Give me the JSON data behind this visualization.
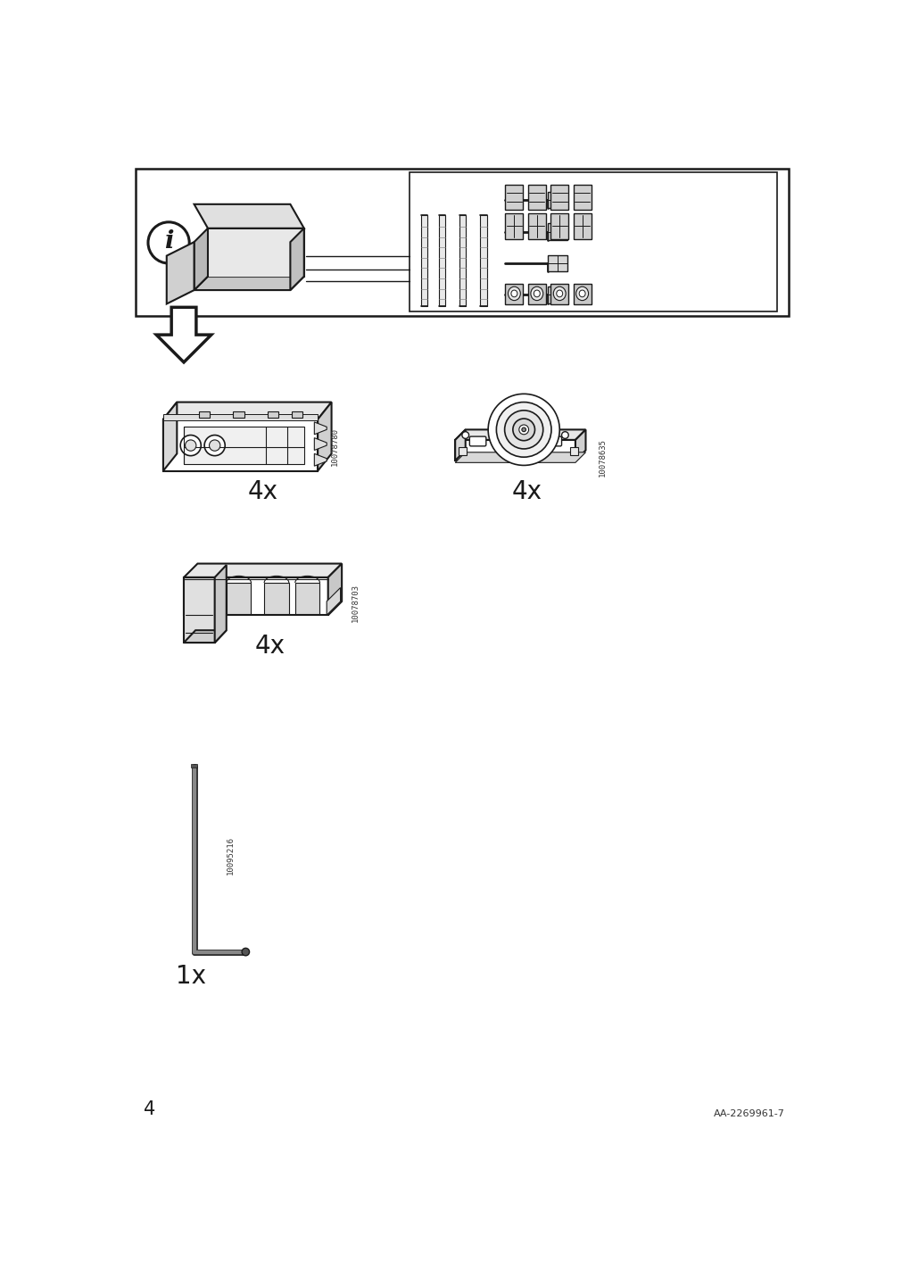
{
  "bg_color": "#ffffff",
  "line_color": "#1a1a1a",
  "gray_fill": "#d0d0d0",
  "light_fill": "#f0f0f0",
  "mid_fill": "#e0e0e0",
  "page_number": "4",
  "doc_code": "AA-2269961-7",
  "part_numbers": [
    "10078780",
    "10078635",
    "10078703",
    "10095216"
  ],
  "quantities": [
    "4x",
    "4x",
    "4x",
    "1x"
  ]
}
